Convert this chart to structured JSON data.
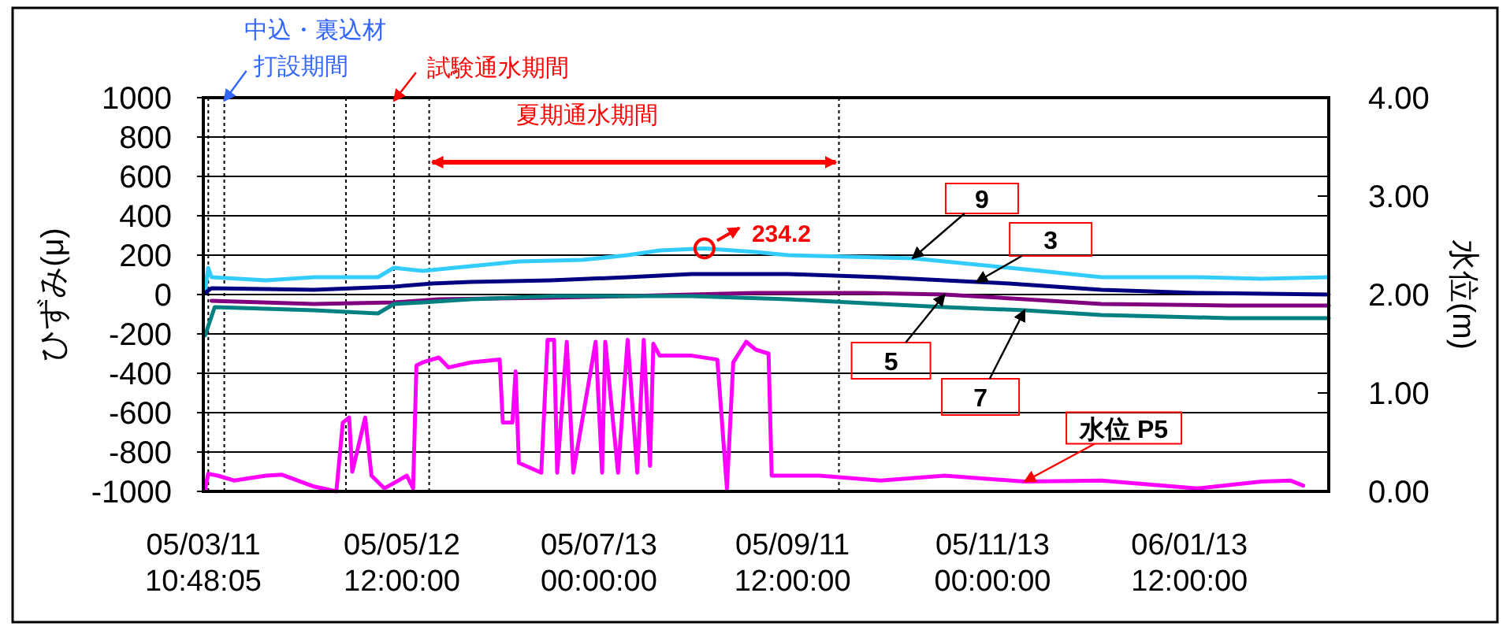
{
  "chart_data": {
    "type": "line",
    "ylabel": "ひずみ(μ)",
    "y2label": "水位(m)",
    "grid": "y",
    "annotations": [
      "中込・裏込材",
      "打設期間",
      "試験通水期間",
      "夏期通水期間",
      {
        "text": "234.2",
        "x": "2005-08-15",
        "y": 234.2
      }
    ],
    "xlim": [
      "2005-03-11T10:48",
      "2006-02-26"
    ],
    "xticks": [
      {
        "value": "2005-03-11T10:48",
        "label": "05/03/11\n10:48:05"
      },
      {
        "value": "2005-05-12T12:00",
        "label": "05/05/12\n12:00:00"
      },
      {
        "value": "2005-07-13T00:00",
        "label": "05/07/13\n00:00:00"
      },
      {
        "value": "2005-09-11T12:00",
        "label": "05/09/11\n12:00:00"
      },
      {
        "value": "2005-11-13T00:00",
        "label": "05/11/13\n00:00:00"
      },
      {
        "value": "2006-01-13T12:00",
        "label": "06/01/13\n12:00:00"
      }
    ],
    "ylim": [
      -1000,
      1000
    ],
    "yticks": [
      -1000,
      -800,
      -600,
      -400,
      -200,
      0,
      200,
      400,
      600,
      800,
      1000
    ],
    "y2lim": [
      0,
      4
    ],
    "y2ticks": [
      {
        "value": 0,
        "label": "0.00"
      },
      {
        "value": 1,
        "label": "1.00"
      },
      {
        "value": 2,
        "label": "2.00"
      },
      {
        "value": 3,
        "label": "3.00"
      },
      {
        "value": 4,
        "label": "4.00"
      }
    ],
    "ref_lines": [
      {
        "axis": "x",
        "value": "2005-03-13",
        "line_style": "dotted",
        "color": "#000000"
      },
      {
        "axis": "x",
        "value": "2005-03-18",
        "line_style": "dotted",
        "color": "#000000"
      },
      {
        "axis": "x",
        "value": "2005-04-25",
        "line_style": "dotted",
        "color": "#000000"
      },
      {
        "axis": "x",
        "value": "2005-05-10",
        "line_style": "dotted",
        "color": "#000000"
      },
      {
        "axis": "x",
        "value": "2005-05-21",
        "line_style": "dotted",
        "color": "#000000"
      },
      {
        "axis": "x",
        "value": "2005-09-26",
        "line_style": "dotted",
        "color": "#000000"
      }
    ],
    "series": [
      {
        "name": "9",
        "color": "#33ccff",
        "x": [
          "2005-03-12",
          "2005-03-13",
          "2005-03-14",
          "2005-03-31",
          "2005-04-15",
          "2005-05-05",
          "2005-05-10",
          "2005-05-19",
          "2005-05-29",
          "2005-06-18",
          "2005-07-08",
          "2005-07-22",
          "2005-08-01",
          "2005-08-15",
          "2005-08-31",
          "2005-09-10",
          "2005-09-29",
          "2005-10-19",
          "2005-11-08",
          "2005-11-28",
          "2005-12-17",
          "2006-01-16",
          "2006-02-05",
          "2006-02-26"
        ],
        "values": [
          16,
          136,
          88,
          72,
          88,
          88,
          136,
          120,
          136,
          168,
          176,
          200,
          224,
          234,
          216,
          200,
          192,
          184,
          152,
          120,
          88,
          88,
          80,
          88
        ]
      },
      {
        "name": "3",
        "color": "#000080",
        "x": [
          "2005-03-12",
          "2005-03-14",
          "2005-04-15",
          "2005-05-10",
          "2005-05-22",
          "2005-06-03",
          "2005-06-28",
          "2005-07-22",
          "2005-08-11",
          "2005-09-10",
          "2005-10-09",
          "2005-11-08",
          "2005-11-18",
          "2005-12-17",
          "2006-01-16",
          "2006-02-26"
        ],
        "values": [
          8,
          32,
          24,
          40,
          56,
          64,
          72,
          88,
          104,
          104,
          88,
          64,
          56,
          24,
          8,
          0
        ]
      },
      {
        "name": "5",
        "color": "#800080",
        "x": [
          "2005-03-14",
          "2005-04-15",
          "2005-05-10",
          "2005-05-24",
          "2005-06-28",
          "2005-07-22",
          "2005-08-31",
          "2005-10-04",
          "2005-10-29",
          "2005-11-23",
          "2005-12-17",
          "2006-01-26",
          "2006-02-26"
        ],
        "values": [
          -32,
          -48,
          -40,
          -24,
          -16,
          -8,
          8,
          8,
          0,
          -24,
          -48,
          -56,
          -56
        ]
      },
      {
        "name": "7",
        "color": "#008080",
        "x": [
          "2005-03-12",
          "2005-03-15",
          "2005-04-15",
          "2005-05-05",
          "2005-05-10",
          "2005-05-19",
          "2005-06-03",
          "2005-06-29",
          "2005-08-11",
          "2005-09-10",
          "2005-10-09",
          "2005-10-29",
          "2005-11-23",
          "2005-12-17",
          "2006-01-26",
          "2006-02-26"
        ],
        "values": [
          -208,
          -64,
          -80,
          -96,
          -48,
          -40,
          -24,
          -8,
          -8,
          -24,
          -48,
          -64,
          -80,
          -104,
          -120,
          -120
        ]
      },
      {
        "name": "水位 P5",
        "color": "#ff00ff",
        "axis": "y2",
        "x": [
          "2005-03-12",
          "2005-03-13",
          "2005-03-16",
          "2005-03-21",
          "2005-03-31",
          "2005-04-05",
          "2005-04-15",
          "2005-04-22",
          "2005-04-24",
          "2005-04-26",
          "2005-04-27",
          "2005-05-01",
          "2005-05-03",
          "2005-05-07",
          "2005-05-14",
          "2005-05-16",
          "2005-05-17",
          "2005-05-19",
          "2005-05-24",
          "2005-05-27",
          "2005-06-03",
          "2005-06-12",
          "2005-06-13",
          "2005-06-16",
          "2005-06-17",
          "2005-06-18",
          "2005-06-25",
          "2005-06-27",
          "2005-06-29",
          "2005-06-30",
          "2005-07-03",
          "2005-07-05",
          "2005-07-12",
          "2005-07-14",
          "2005-07-15",
          "2005-07-19",
          "2005-07-22",
          "2005-07-25",
          "2005-07-27",
          "2005-07-29",
          "2005-07-30",
          "2005-08-01",
          "2005-08-11",
          "2005-08-19",
          "2005-08-22",
          "2005-08-24",
          "2005-08-28",
          "2005-08-31",
          "2005-09-04",
          "2005-09-05",
          "2005-09-20",
          "2005-10-09",
          "2005-10-29",
          "2005-11-23",
          "2005-12-17",
          "2006-01-16",
          "2006-02-05",
          "2006-02-14",
          "2006-02-18"
        ],
        "values": [
          0.02,
          0.18,
          0.16,
          0.11,
          0.16,
          0.17,
          0.05,
          0.0,
          0.7,
          0.75,
          0.2,
          0.75,
          0.16,
          0.03,
          0.16,
          0.03,
          1.28,
          1.31,
          1.36,
          1.26,
          1.31,
          1.34,
          0.7,
          0.7,
          1.22,
          0.29,
          0.19,
          1.54,
          1.54,
          0.19,
          1.52,
          0.19,
          1.52,
          0.19,
          1.52,
          0.19,
          1.54,
          0.19,
          1.54,
          0.26,
          1.5,
          1.38,
          1.38,
          1.34,
          0.03,
          1.31,
          1.52,
          1.44,
          1.4,
          0.16,
          0.16,
          0.11,
          0.16,
          0.1,
          0.11,
          0.03,
          0.1,
          0.11,
          0.06
        ]
      }
    ]
  }
}
